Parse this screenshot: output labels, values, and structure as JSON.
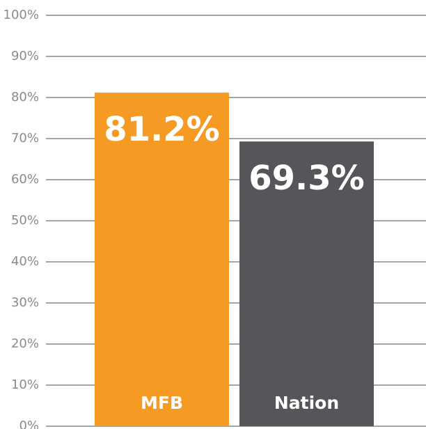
{
  "chart_data": {
    "type": "bar",
    "categories": [
      "MFB",
      "Nation"
    ],
    "values": [
      81.2,
      69.3
    ],
    "value_labels": [
      "81.2%",
      "69.3%"
    ],
    "colors": [
      "#f59a23",
      "#55565a"
    ],
    "ylim": [
      0,
      100
    ],
    "yticks": [
      {
        "value": 0,
        "label": "0%"
      },
      {
        "value": 10,
        "label": "10%"
      },
      {
        "value": 20,
        "label": "20%"
      },
      {
        "value": 30,
        "label": "30%"
      },
      {
        "value": 40,
        "label": "40%"
      },
      {
        "value": 50,
        "label": "50%"
      },
      {
        "value": 60,
        "label": "60%"
      },
      {
        "value": 70,
        "label": "70%"
      },
      {
        "value": 80,
        "label": "80%"
      },
      {
        "value": 90,
        "label": "90%"
      },
      {
        "value": 100,
        "label": "100%"
      }
    ],
    "grid": true
  }
}
